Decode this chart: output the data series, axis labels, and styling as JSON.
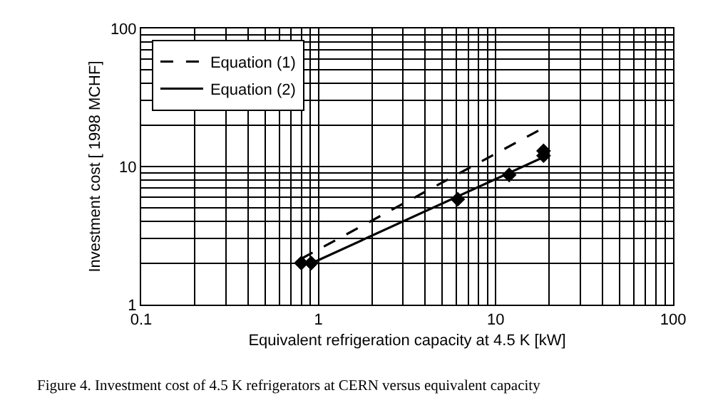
{
  "chart_data": {
    "type": "line",
    "xlabel": "Equivalent refrigeration capacity at 4.5 K [kW]",
    "ylabel": "Investment cost [ 1998 MCHF]",
    "log": "xy",
    "xlim": [
      0.1,
      100
    ],
    "xticks": [
      0.1,
      1,
      10,
      100
    ],
    "ylim": [
      1,
      100
    ],
    "yticks": [
      1,
      10,
      100
    ],
    "grid": true,
    "legend": "top left",
    "series": [
      {
        "name": "Equation (1)",
        "color": "#000000",
        "line_style": "dashed",
        "marker": "none",
        "x": [
          0.8,
          18.9
        ],
        "values": [
          2.15,
          19.3
        ]
      },
      {
        "name": "Equation (2)",
        "color": "#000000",
        "line_style": "solid",
        "marker": "none",
        "x": [
          0.88,
          18.9
        ],
        "values": [
          1.95,
          11.8
        ]
      },
      {
        "type": "scatter",
        "color": "#000000",
        "marker": "diamond",
        "x": [
          0.8,
          0.91,
          6.1,
          11.9,
          18.6,
          18.6
        ],
        "values": [
          2,
          2,
          5.8,
          8.7,
          13,
          12
        ]
      }
    ],
    "annotations": [
      "Figure 4. Investment cost of 4.5 K refrigerators at CERN versus equivalent capacity"
    ]
  }
}
